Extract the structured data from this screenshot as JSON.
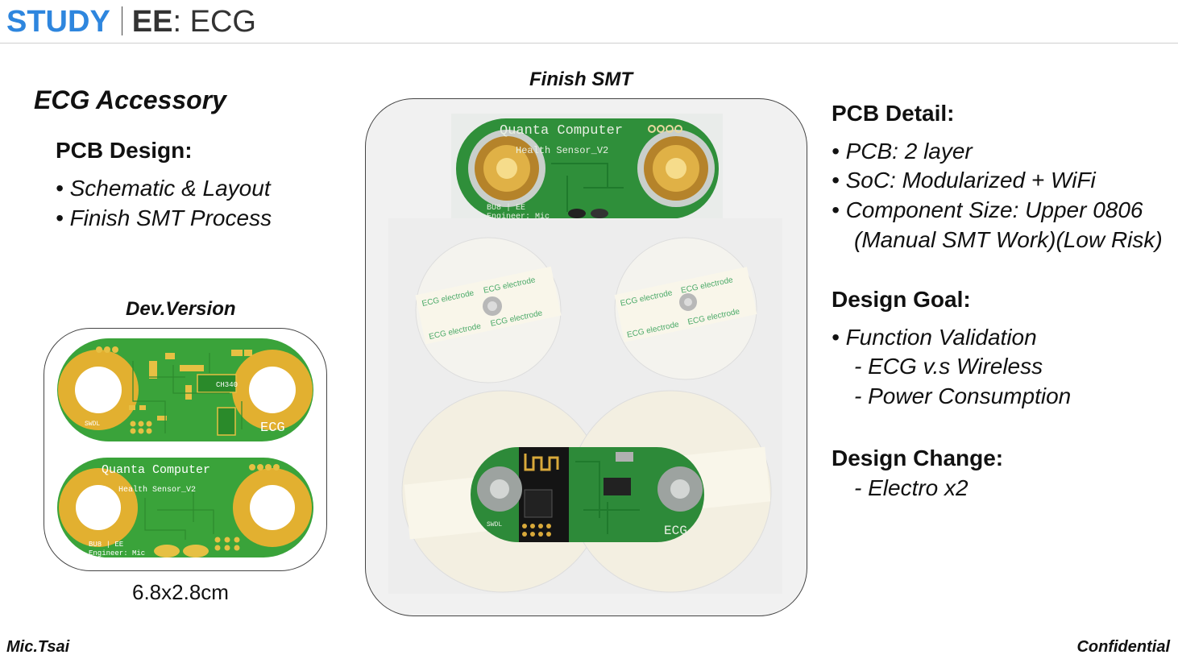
{
  "header": {
    "brand": "STUDY",
    "section": "EE",
    "topic": ": ECG"
  },
  "left": {
    "title": "ECG Accessory",
    "pcb_design_heading": "PCB Design:",
    "pcb_design_items": [
      "• Schematic & Layout",
      "• Finish SMT Process"
    ],
    "dev_caption": "Dev.Version",
    "size_caption": "6.8x2.8cm"
  },
  "center": {
    "caption": "Finish SMT"
  },
  "pcb_silkscreen": {
    "company": "Quanta Computer",
    "product": "Health Sensor_V2",
    "dept": "BU8 | EE",
    "engineer": "Engineer: Mic",
    "ecg": "ECG",
    "swdl": "SWDL",
    "chip": "CH340",
    "electrode_text": "ECG electrode"
  },
  "right": {
    "pcb_detail_heading": "PCB Detail:",
    "pcb_detail_items": [
      "• PCB: 2 layer",
      "• SoC: Modularized + WiFi",
      "• Component Size: Upper 0806",
      "(Manual SMT Work)(Low Risk)"
    ],
    "design_goal_heading": "Design Goal:",
    "design_goal_items": [
      "• Function Validation",
      "- ECG v.s Wireless",
      "- Power Consumption"
    ],
    "design_change_heading": "Design Change:",
    "design_change_items": [
      "- Electro x2"
    ]
  },
  "footer": {
    "author": "Mic.Tsai",
    "confidentiality": "Confidential"
  },
  "colors": {
    "brand_blue": "#2e86de",
    "pcb_green": "#3aa33a",
    "pad_gold": "#e2b030"
  }
}
